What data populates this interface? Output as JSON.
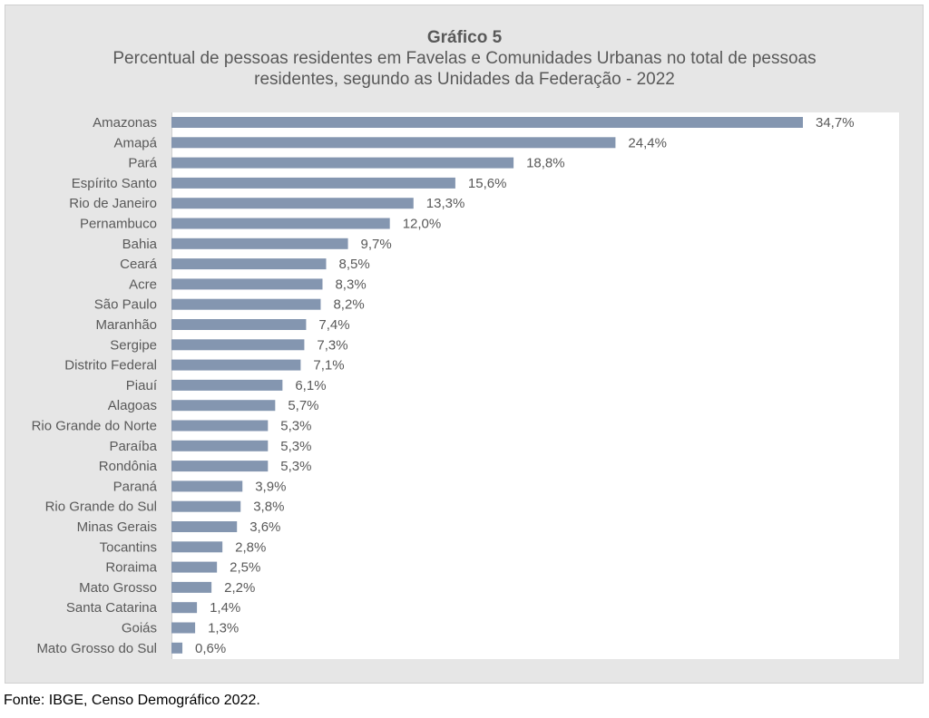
{
  "chart_data": {
    "type": "bar",
    "orientation": "horizontal",
    "title": "Gráfico 5",
    "subtitle": "Percentual de pessoas residentes em Favelas e Comunidades Urbanas no total de pessoas residentes, segundo as Unidades da Federação - 2022",
    "categories": [
      "Amazonas",
      "Amapá",
      "Pará",
      "Espírito Santo",
      "Rio de Janeiro",
      "Pernambuco",
      "Bahia",
      "Ceará",
      "Acre",
      "São Paulo",
      "Maranhão",
      "Sergipe",
      "Distrito Federal",
      "Piauí",
      "Alagoas",
      "Rio Grande do Norte",
      "Paraíba",
      "Rondônia",
      "Paraná",
      "Rio Grande do Sul",
      "Minas Gerais",
      "Tocantins",
      "Roraima",
      "Mato Grosso",
      "Santa Catarina",
      "Goiás",
      "Mato Grosso do Sul"
    ],
    "values": [
      34.7,
      24.4,
      18.8,
      15.6,
      13.3,
      12.0,
      9.7,
      8.5,
      8.3,
      8.2,
      7.4,
      7.3,
      7.1,
      6.1,
      5.7,
      5.3,
      5.3,
      5.3,
      3.9,
      3.8,
      3.6,
      2.8,
      2.5,
      2.2,
      1.4,
      1.3,
      0.6
    ],
    "data_labels": [
      "34,7%",
      "24,4%",
      "18,8%",
      "15,6%",
      "13,3%",
      "12,0%",
      "9,7%",
      "8,5%",
      "8,3%",
      "8,2%",
      "7,4%",
      "7,3%",
      "7,1%",
      "6,1%",
      "5,7%",
      "5,3%",
      "5,3%",
      "5,3%",
      "3,9%",
      "3,8%",
      "3,6%",
      "2,8%",
      "2,5%",
      "2,2%",
      "1,4%",
      "1,3%",
      "0,6%"
    ],
    "xlim": [
      0,
      40
    ],
    "grid": false,
    "legend": "none",
    "bar_color": "#8496b0",
    "plot_background": "#ffffff",
    "panel_background": "#e6e6e6"
  },
  "source": "Fonte: IBGE, Censo Demográfico 2022."
}
